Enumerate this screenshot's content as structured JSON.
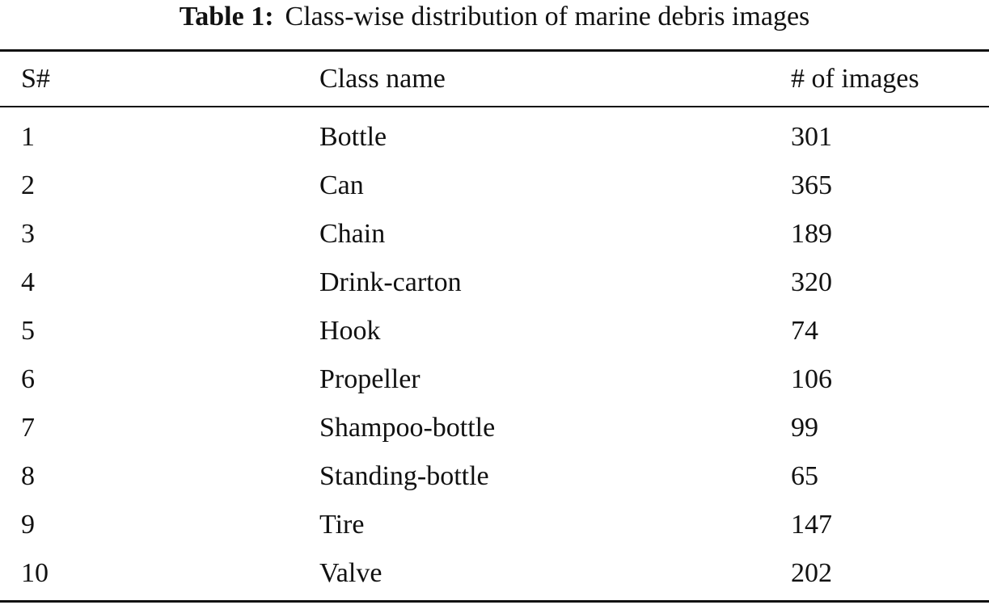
{
  "table": {
    "caption_label": "Table 1:",
    "caption_text": "Class-wise distribution of marine debris images",
    "headers": [
      "S#",
      "Class name",
      "# of images"
    ],
    "rows": [
      [
        "1",
        "Bottle",
        "301"
      ],
      [
        "2",
        "Can",
        "365"
      ],
      [
        "3",
        "Chain",
        "189"
      ],
      [
        "4",
        "Drink-carton",
        "320"
      ],
      [
        "5",
        "Hook",
        "74"
      ],
      [
        "6",
        "Propeller",
        "106"
      ],
      [
        "7",
        "Shampoo-bottle",
        "99"
      ],
      [
        "8",
        "Standing-bottle",
        "65"
      ],
      [
        "9",
        "Tire",
        "147"
      ],
      [
        "10",
        "Valve",
        "202"
      ]
    ]
  }
}
